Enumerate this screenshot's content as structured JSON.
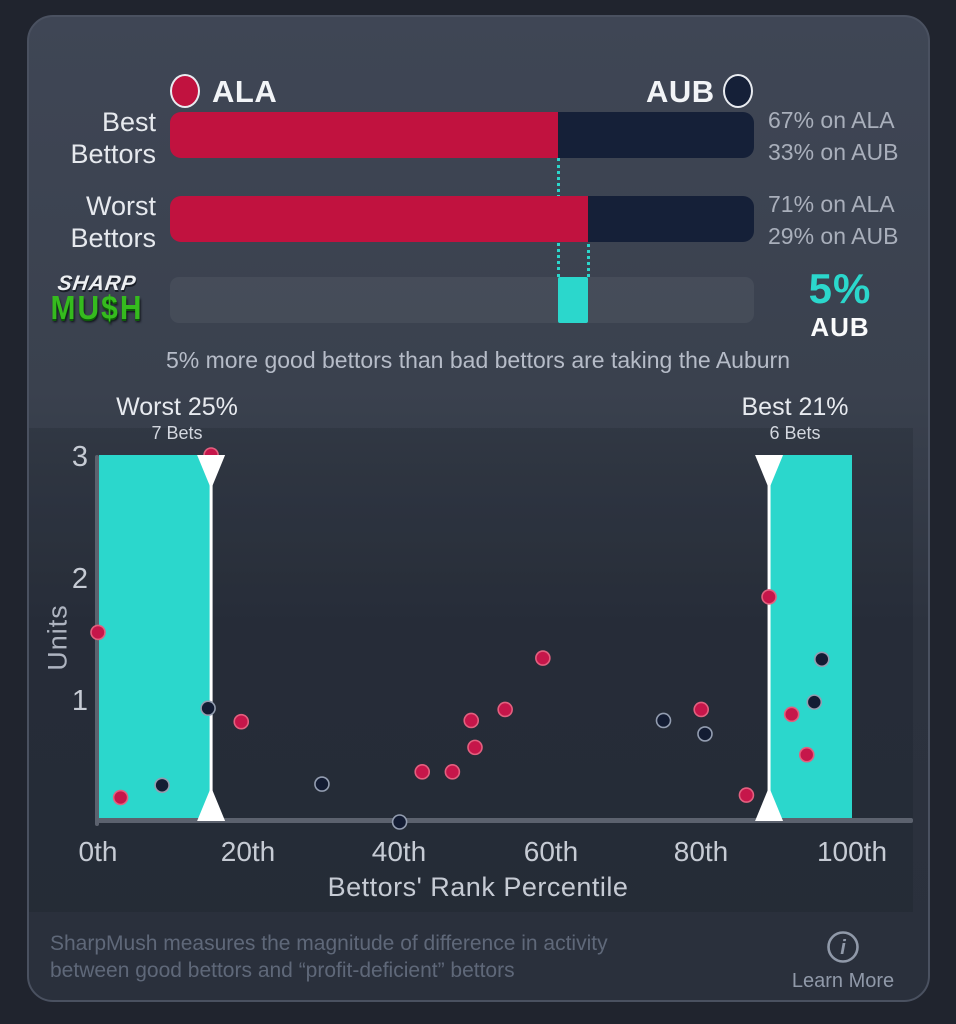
{
  "colors": {
    "teal": "#2BD7CC",
    "ala_red": "#C1123F",
    "aub_navy": "#152038",
    "card_border": "#4A5160",
    "axis_gray": "#5C626E",
    "white": "#FFFFFF"
  },
  "legend": {
    "ala": "ALA",
    "aub": "AUB"
  },
  "bars": {
    "best": {
      "label_line1": "Best",
      "label_line2": "Bettors",
      "ala_pct": 66.5,
      "aub_pct": 33.5,
      "right_line1": "67% on ALA",
      "right_line2": "33% on AUB"
    },
    "worst": {
      "label_line1": "Worst",
      "label_line2": "Bettors",
      "ala_pct": 71.5,
      "aub_pct": 28.5,
      "right_line1": "71% on ALA",
      "right_line2": "29% on AUB"
    }
  },
  "diff": {
    "segment_start_pct": 66.5,
    "segment_end_pct": 71.5,
    "value_label": "5%",
    "team_label": "AUB"
  },
  "logo": {
    "line1": "SHARP",
    "line2": "MU$H",
    "green": "#35BB1E"
  },
  "caption": "5% more good bettors than bad bettors are taking the Auburn",
  "chart_data": {
    "type": "scatter",
    "xlabel": "Bettors' Rank Percentile",
    "ylabel": "Units",
    "xlim": [
      0,
      100
    ],
    "ylim": [
      0,
      3
    ],
    "x_ticks": [
      "0th",
      "20th",
      "40th",
      "60th",
      "80th",
      "100th"
    ],
    "y_ticks": [
      "3",
      "2",
      "1"
    ],
    "grid": false,
    "bands": [
      {
        "title": "Worst 25%",
        "sub": "7 Bets",
        "from": 0,
        "to": 15,
        "triangle_edge": "to"
      },
      {
        "title": "Best 21%",
        "sub": "6 Bets",
        "from": 89,
        "to": 100,
        "triangle_edge": "from"
      }
    ],
    "series": [
      {
        "name": "ALA",
        "color": "#C6164A",
        "ring": "#E2607F",
        "points": [
          [
            0,
            1.55
          ],
          [
            3,
            0.2
          ],
          [
            15,
            3.0
          ],
          [
            19,
            0.82
          ],
          [
            43,
            0.41
          ],
          [
            47,
            0.41
          ],
          [
            49.5,
            0.83
          ],
          [
            50,
            0.61
          ],
          [
            54,
            0.92
          ],
          [
            59,
            1.34
          ],
          [
            80,
            0.92
          ],
          [
            86,
            0.22
          ],
          [
            89,
            1.84
          ],
          [
            92,
            0.88
          ],
          [
            94,
            0.55
          ]
        ]
      },
      {
        "name": "AUB",
        "color": "#131C33",
        "ring": "#939DB0",
        "points": [
          [
            8.5,
            0.3
          ],
          [
            14.6,
            0.93
          ],
          [
            29.7,
            0.31
          ],
          [
            40,
            0.0
          ],
          [
            75,
            0.83
          ],
          [
            80.5,
            0.72
          ],
          [
            95,
            0.98
          ],
          [
            96,
            1.33
          ]
        ]
      }
    ]
  },
  "footer": {
    "line1": "SharpMush measures the magnitude of difference in activity",
    "line2": "between good bettors and “profit-deficient” bettors",
    "info_icon": "info-circle",
    "learn_more": "Learn More"
  }
}
